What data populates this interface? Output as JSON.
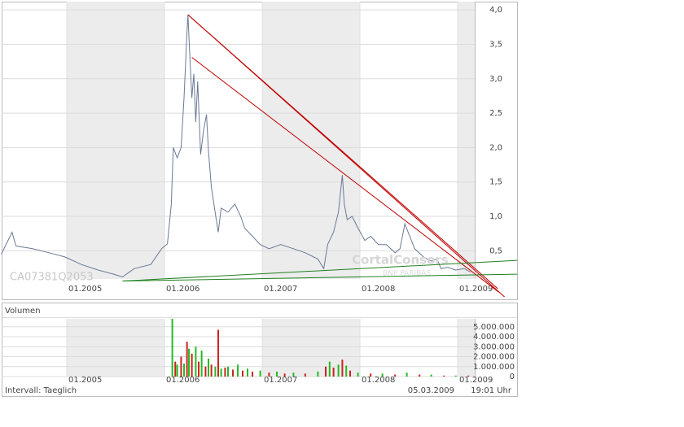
{
  "chart_data": [
    {
      "type": "line",
      "label": "CA07381Q2053",
      "watermark": [
        "CortalConsors",
        "BNP PARIBAS"
      ],
      "color": "#6a7a94",
      "x": [
        2004.33,
        2004.44,
        2004.48,
        2004.65,
        2004.82,
        2004.98,
        2005.15,
        2005.32,
        2005.48,
        2005.57,
        2005.69,
        2005.86,
        2005.97,
        2006.03,
        2006.07,
        2006.09,
        2006.13,
        2006.17,
        2006.2,
        2006.23,
        2006.24,
        2006.26,
        2006.28,
        2006.3,
        2006.32,
        2006.34,
        2006.37,
        2006.4,
        2006.43,
        2006.45,
        2006.48,
        2006.53,
        2006.55,
        2006.58,
        2006.65,
        2006.72,
        2006.78,
        2006.82,
        2006.9,
        2006.98,
        2007.07,
        2007.19,
        2007.32,
        2007.44,
        2007.57,
        2007.63,
        2007.67,
        2007.73,
        2007.78,
        2007.82,
        2007.84,
        2007.87,
        2007.92,
        2007.98,
        2008.05,
        2008.11,
        2008.19,
        2008.27,
        2008.36,
        2008.41,
        2008.46,
        2008.51,
        2008.56,
        2008.65,
        2008.73,
        2008.79,
        2008.83,
        2008.9,
        2008.98,
        2009.07,
        2009.13
      ],
      "values": [
        0.45,
        0.77,
        0.57,
        0.53,
        0.47,
        0.41,
        0.3,
        0.22,
        0.16,
        0.12,
        0.24,
        0.3,
        0.53,
        0.6,
        1.18,
        2.0,
        1.85,
        2.0,
        2.72,
        3.67,
        3.93,
        3.31,
        2.72,
        3.07,
        2.37,
        2.96,
        1.9,
        2.25,
        2.48,
        1.95,
        1.42,
        0.95,
        0.77,
        1.12,
        1.06,
        1.18,
        1.0,
        0.83,
        0.71,
        0.59,
        0.53,
        0.59,
        0.53,
        0.47,
        0.38,
        0.24,
        0.59,
        0.77,
        1.06,
        1.6,
        1.18,
        0.95,
        1.0,
        0.83,
        0.65,
        0.71,
        0.59,
        0.59,
        0.47,
        0.53,
        0.89,
        0.71,
        0.53,
        0.41,
        0.35,
        0.38,
        0.24,
        0.26,
        0.22,
        0.24,
        0.19
      ],
      "trend_lines": [
        {
          "color": "#c00000",
          "x": [
            2006.24,
            2009.48
          ],
          "values": [
            3.93,
            -0.17
          ]
        },
        {
          "color": "#c00000",
          "x": [
            2006.24,
            2009.41
          ],
          "values": [
            3.93,
            -0.05
          ]
        },
        {
          "color": "#c00000",
          "x": [
            2006.28,
            2009.42
          ],
          "values": [
            3.31,
            -0.1
          ]
        },
        {
          "color": "#208020",
          "x": [
            2005.57,
            2009.61
          ],
          "values": [
            0.06,
            0.36
          ]
        },
        {
          "color": "#208020",
          "x": [
            2005.57,
            2009.61
          ],
          "values": [
            0.06,
            0.16
          ]
        }
      ],
      "xlim": [
        2004.333,
        2009.175
      ],
      "ylim": [
        0.09,
        4.12
      ],
      "xticks": [
        {
          "value": 2005,
          "label": "01.2005"
        },
        {
          "value": 2006,
          "label": "01.2006"
        },
        {
          "value": 2007,
          "label": "01.2007"
        },
        {
          "value": 2008,
          "label": "01.2008"
        },
        {
          "value": 2009,
          "label": "01.2009"
        }
      ],
      "yticks": [
        {
          "value": 0.5,
          "label": "0,5"
        },
        {
          "value": 1.0,
          "label": "1,0"
        },
        {
          "value": 1.5,
          "label": "1,5"
        },
        {
          "value": 2.0,
          "label": "2,0"
        },
        {
          "value": 2.5,
          "label": "2,5"
        },
        {
          "value": 3.0,
          "label": "3,0"
        },
        {
          "value": 3.5,
          "label": "3,5"
        },
        {
          "value": 4.0,
          "label": "4,0"
        }
      ],
      "grid": true
    },
    {
      "type": "bar",
      "title": "Volumen",
      "x": [
        2006.08,
        2006.11,
        2006.13,
        2006.17,
        2006.2,
        2006.23,
        2006.25,
        2006.28,
        2006.32,
        2006.35,
        2006.38,
        2006.42,
        2006.45,
        2006.48,
        2006.52,
        2006.55,
        2006.58,
        2006.62,
        2006.65,
        2006.7,
        2006.75,
        2006.8,
        2006.85,
        2006.9,
        2006.98,
        2007.07,
        2007.15,
        2007.23,
        2007.32,
        2007.44,
        2007.57,
        2007.65,
        2007.69,
        2007.73,
        2007.78,
        2007.82,
        2007.86,
        2007.9,
        2007.98,
        2008.11,
        2008.23,
        2008.36,
        2008.48,
        2008.61,
        2008.73,
        2008.86,
        2008.98,
        2009.11
      ],
      "values": [
        5800000,
        1500000,
        1200000,
        2000000,
        1300000,
        3500000,
        2800000,
        2300000,
        3000000,
        1500000,
        2600000,
        1000000,
        1800000,
        1200000,
        1000000,
        4700000,
        800000,
        900000,
        1000000,
        700000,
        1200000,
        600000,
        800000,
        500000,
        600000,
        400000,
        500000,
        300000,
        400000,
        300000,
        500000,
        1000000,
        1500000,
        900000,
        1200000,
        1700000,
        1100000,
        600000,
        400000,
        300000,
        300000,
        200000,
        400000,
        200000,
        200000,
        100000,
        100000,
        100000
      ],
      "colors": [
        "#22bb22",
        "#cc2222",
        "#22bb22",
        "#cc2222",
        "#22bb22",
        "#cc2222",
        "#22bb22",
        "#cc2222",
        "#22bb22",
        "#cc2222",
        "#22bb22",
        "#cc2222",
        "#22bb22",
        "#cc2222",
        "#22bb22",
        "#cc2222",
        "#22bb22",
        "#cc2222",
        "#22bb22",
        "#cc2222",
        "#22bb22",
        "#cc2222",
        "#22bb22",
        "#cc2222",
        "#22bb22",
        "#cc2222",
        "#22bb22",
        "#cc2222",
        "#22bb22",
        "#cc2222",
        "#22bb22",
        "#cc2222",
        "#22bb22",
        "#cc2222",
        "#22bb22",
        "#cc2222",
        "#22bb22",
        "#cc2222",
        "#22bb22",
        "#cc2222",
        "#22bb22",
        "#cc2222",
        "#22bb22",
        "#cc2222",
        "#22bb22",
        "#cc2222",
        "#22bb22",
        "#cc2222"
      ],
      "xlim": [
        2004.333,
        2009.175
      ],
      "ylim": [
        0,
        5800000
      ],
      "xticks": [
        {
          "value": 2005,
          "label": "01.2005"
        },
        {
          "value": 2006,
          "label": "01.2006"
        },
        {
          "value": 2007,
          "label": "01.2007"
        },
        {
          "value": 2008,
          "label": "01.2008"
        },
        {
          "value": 2009,
          "label": "01.2009"
        }
      ],
      "yticks": [
        0,
        {
          "value": 1000000,
          "label": "1.000.000"
        },
        {
          "value": 2000000,
          "label": "2.000.000"
        },
        {
          "value": 3000000,
          "label": "3.000.000"
        },
        {
          "value": 4000000,
          "label": "4.000.000"
        },
        {
          "value": 5000000,
          "label": "5.000.000"
        }
      ],
      "grid": true
    }
  ],
  "footer": {
    "interval": "Intervall: Taeglich",
    "date": "05.03.2009",
    "time": "19:01 Uhr"
  }
}
